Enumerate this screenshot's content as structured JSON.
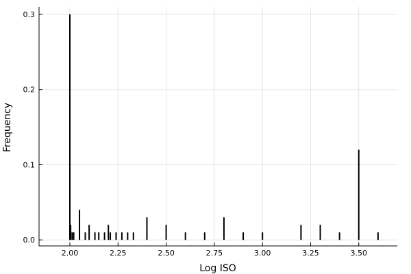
{
  "chart_data": {
    "type": "bar",
    "xlabel": "Log ISO",
    "ylabel": "Frequency",
    "xlim": [
      1.84,
      3.7
    ],
    "ylim": [
      -0.008,
      0.31
    ],
    "grid": true,
    "bar_color": "#000000",
    "x_ticks": [
      "2.00",
      "2.25",
      "2.50",
      "2.75",
      "3.00",
      "3.25",
      "3.50"
    ],
    "x_tick_values": [
      2.0,
      2.25,
      2.5,
      2.75,
      3.0,
      3.25,
      3.5
    ],
    "y_ticks": [
      "0.0",
      "0.1",
      "0.2",
      "0.3"
    ],
    "y_tick_values": [
      0.0,
      0.1,
      0.2,
      0.3
    ],
    "points": [
      {
        "x": 2.0,
        "y": 0.3
      },
      {
        "x": 2.004,
        "y": 0.02
      },
      {
        "x": 2.012,
        "y": 0.01
      },
      {
        "x": 2.02,
        "y": 0.01
      },
      {
        "x": 2.05,
        "y": 0.04
      },
      {
        "x": 2.08,
        "y": 0.01
      },
      {
        "x": 2.1,
        "y": 0.02
      },
      {
        "x": 2.13,
        "y": 0.01
      },
      {
        "x": 2.15,
        "y": 0.01
      },
      {
        "x": 2.18,
        "y": 0.01
      },
      {
        "x": 2.2,
        "y": 0.02
      },
      {
        "x": 2.21,
        "y": 0.01
      },
      {
        "x": 2.24,
        "y": 0.01
      },
      {
        "x": 2.27,
        "y": 0.01
      },
      {
        "x": 2.3,
        "y": 0.01
      },
      {
        "x": 2.33,
        "y": 0.01
      },
      {
        "x": 2.4,
        "y": 0.03
      },
      {
        "x": 2.5,
        "y": 0.02
      },
      {
        "x": 2.6,
        "y": 0.01
      },
      {
        "x": 2.7,
        "y": 0.01
      },
      {
        "x": 2.8,
        "y": 0.03
      },
      {
        "x": 2.9,
        "y": 0.01
      },
      {
        "x": 3.0,
        "y": 0.01
      },
      {
        "x": 3.2,
        "y": 0.02
      },
      {
        "x": 3.3,
        "y": 0.02
      },
      {
        "x": 3.4,
        "y": 0.01
      },
      {
        "x": 3.5,
        "y": 0.12
      },
      {
        "x": 3.6,
        "y": 0.01
      }
    ]
  }
}
